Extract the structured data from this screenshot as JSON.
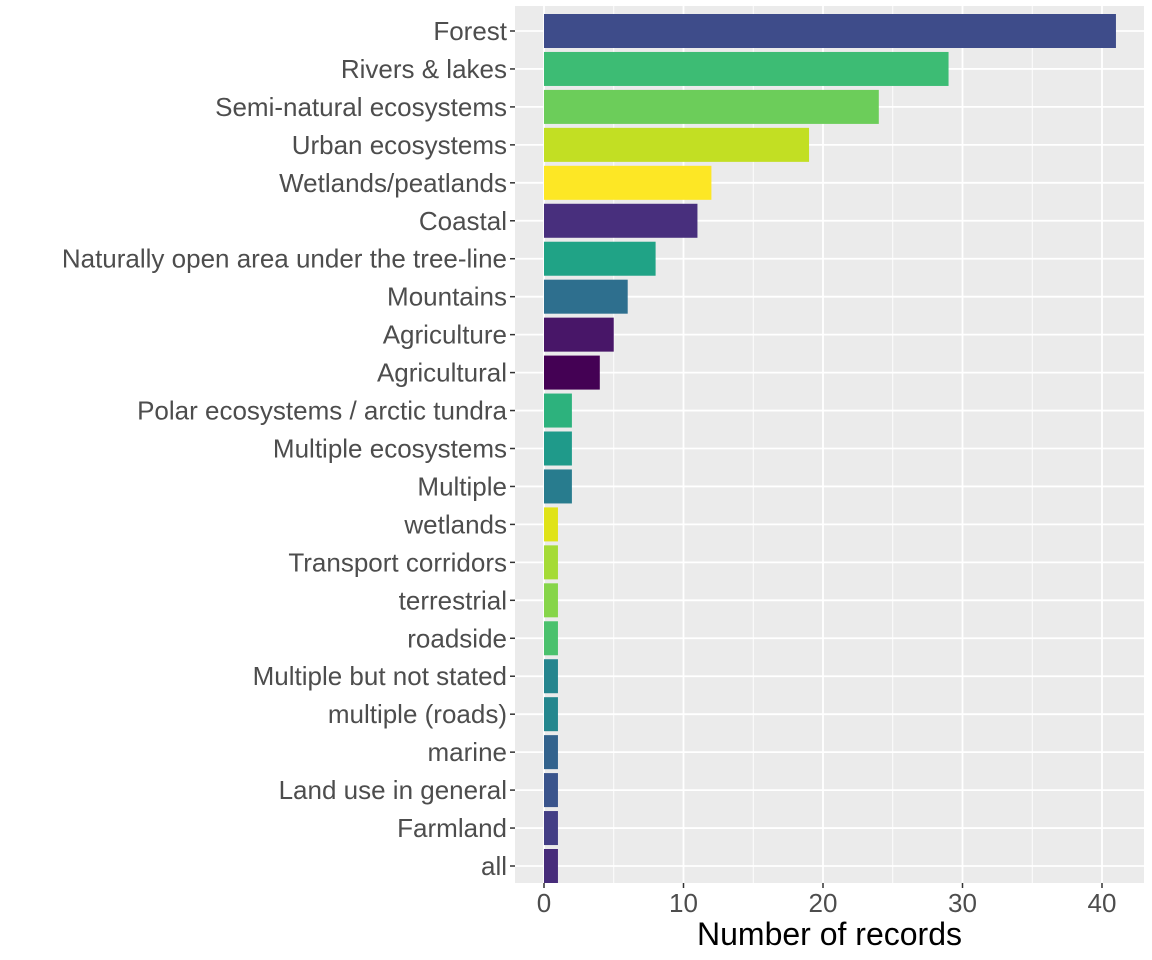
{
  "chart_data": {
    "type": "bar",
    "orientation": "horizontal",
    "title": "",
    "xlabel": "Number of records",
    "ylabel": "",
    "xlim": [
      0,
      42.1
    ],
    "x_ticks": [
      0,
      10,
      20,
      30,
      40
    ],
    "grid": true,
    "legend": "none",
    "categories": [
      "Forest",
      "Rivers & lakes",
      "Semi-natural ecosystems",
      "Urban ecosystems",
      "Wetlands/peatlands",
      "Coastal",
      "Naturally open area under the tree-line",
      "Mountains",
      "Agriculture",
      "Agricultural",
      "Polar ecosystems / arctic tundra",
      "Multiple ecosystems",
      "Multiple",
      "wetlands",
      "Transport corridors",
      "terrestrial",
      "roadside",
      "Multiple but not stated",
      "multiple (roads)",
      "marine",
      "Land use in general",
      "Farmland",
      "all"
    ],
    "values": [
      41,
      29,
      24,
      19,
      12,
      11,
      8,
      6,
      5,
      4,
      2,
      2,
      2,
      1,
      1,
      1,
      1,
      1,
      1,
      1,
      1,
      1,
      1
    ],
    "colors": [
      "#3e4c8a",
      "#3dbc74",
      "#6ccd5a",
      "#c2df23",
      "#fde725",
      "#482f7d",
      "#20a386",
      "#2e6f8e",
      "#481668",
      "#440154",
      "#2db27d",
      "#1f9a8a",
      "#287c8e",
      "#e0e318",
      "#a5db36",
      "#86d549",
      "#4ac16d",
      "#25858e",
      "#24878e",
      "#33638d",
      "#3a548c",
      "#433e85",
      "#472c7a"
    ]
  }
}
